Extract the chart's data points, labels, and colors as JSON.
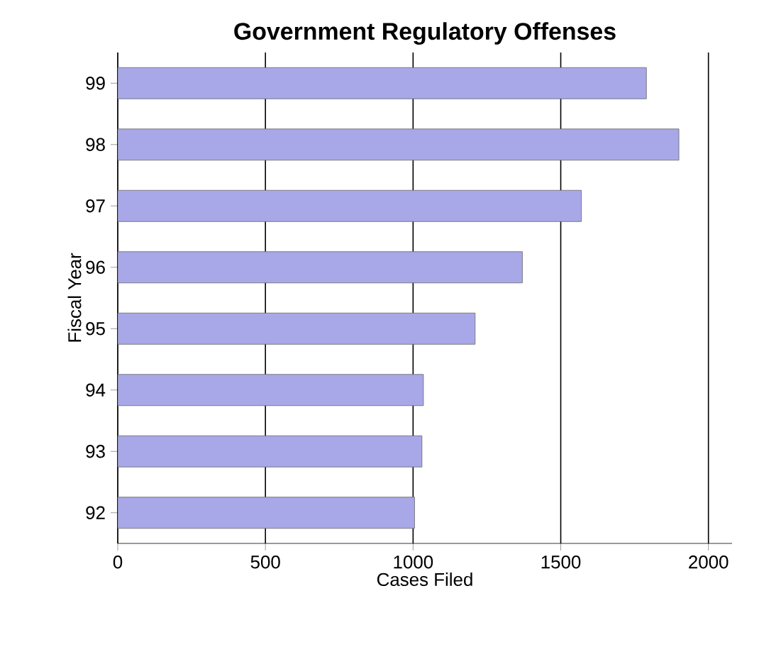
{
  "chart_data": {
    "type": "bar",
    "orientation": "horizontal",
    "title": "Government Regulatory Offenses",
    "xlabel": "Cases Filed",
    "ylabel": "Fiscal Year",
    "categories": [
      "99",
      "98",
      "97",
      "96",
      "95",
      "94",
      "93",
      "92"
    ],
    "values": [
      1790,
      1900,
      1570,
      1370,
      1210,
      1035,
      1030,
      1005
    ],
    "color": "#a8a8e8",
    "xlim": [
      0,
      2080
    ],
    "xticks": [
      0,
      500,
      1000,
      1500,
      2000
    ],
    "grid": "x"
  }
}
